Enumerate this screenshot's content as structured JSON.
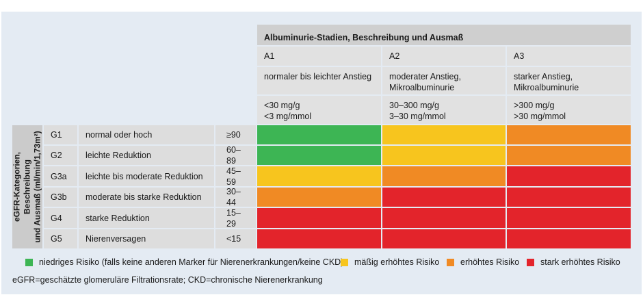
{
  "header": {
    "title": "Albuminurie-Stadien, Beschreibung und Ausmaß",
    "columns": [
      {
        "stage": "A1",
        "desc": "normaler bis leichter Anstieg",
        "range1": "<30 mg/g",
        "range2": "<3 mg/mmol"
      },
      {
        "stage": "A2",
        "desc1": "moderater Anstieg,",
        "desc2": "Mikroalbuminurie",
        "range1": "30–300 mg/g",
        "range2": "3–30 mg/mmol"
      },
      {
        "stage": "A3",
        "desc1": "starker Anstieg,",
        "desc2": "Mikroalbuminurie",
        "range1": ">300 mg/g",
        "range2": ">30 mg/mmol"
      }
    ]
  },
  "side_label": {
    "line1": "eGFR-Kategorien, Beschreibung",
    "line2": "und Ausmaß (ml/min/1,73m²)"
  },
  "rows": [
    {
      "code": "G1",
      "desc": "normal oder hoch",
      "range": "≥90",
      "risk": [
        "#3db554",
        "#f7c51e",
        "#f08a24"
      ]
    },
    {
      "code": "G2",
      "desc": "leichte Reduktion",
      "range": "60–89",
      "risk": [
        "#3db554",
        "#f7c51e",
        "#f08a24"
      ]
    },
    {
      "code": "G3a",
      "desc": "leichte bis moderate Reduktion",
      "range": "45–59",
      "risk": [
        "#f7c51e",
        "#f08a24",
        "#e3242b"
      ]
    },
    {
      "code": "G3b",
      "desc": "moderate bis starke Reduktion",
      "range": "30–44",
      "risk": [
        "#f08a24",
        "#e3242b",
        "#e3242b"
      ]
    },
    {
      "code": "G4",
      "desc": "starke Reduktion",
      "range": "15–29",
      "risk": [
        "#e3242b",
        "#e3242b",
        "#e3242b"
      ]
    },
    {
      "code": "G5",
      "desc": "Nierenversagen",
      "range": "<15",
      "risk": [
        "#e3242b",
        "#e3242b",
        "#e3242b"
      ]
    }
  ],
  "legend": [
    {
      "label": "niedriges Risiko (falls keine anderen Marker für Nierenerkrankungen/keine CKD)",
      "color": "#3db554"
    },
    {
      "label": "mäßig erhöhtes Risiko",
      "color": "#f7c51e"
    },
    {
      "label": "erhöhtes Risiko",
      "color": "#f08a24"
    },
    {
      "label": "stark erhöhtes Risiko",
      "color": "#e3242b"
    }
  ],
  "footnote": "eGFR=geschätzte glomeruläre Filtrationsrate; CKD=chronische Nierenerkrankung"
}
